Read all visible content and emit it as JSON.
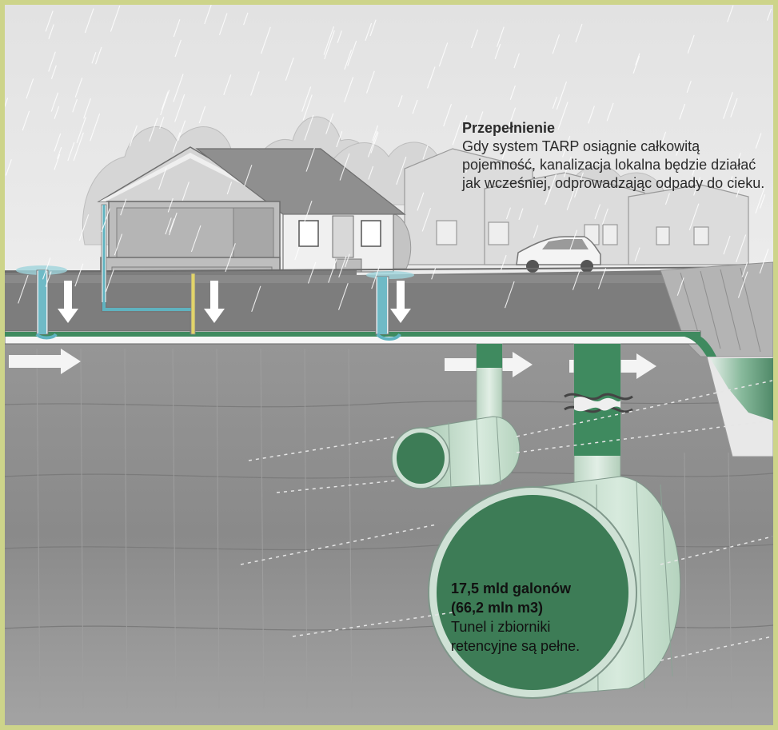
{
  "overflow_note": {
    "title": "Przepełnienie",
    "body": "Gdy system TARP osiągnie całkowitą pojemność, kanalizacja lokalna będzie działać jak wcześniej, odprowadzając odpady do cieku."
  },
  "tunnel_note": {
    "title_line1": "17,5 mld galonów",
    "title_line2": "(66,2 mln m3)",
    "body": "Tunel i zbiorniki retencyjne są pełne."
  },
  "colors": {
    "frame": "#cdd48a",
    "sky": "#e6e6e6",
    "ground": "#7e7e7e",
    "rock": "#8d8d8d",
    "water_green": "#3a7a56",
    "pipe_fill": "#cfe4d4",
    "stormwater_blue": "#5fb3c0"
  }
}
